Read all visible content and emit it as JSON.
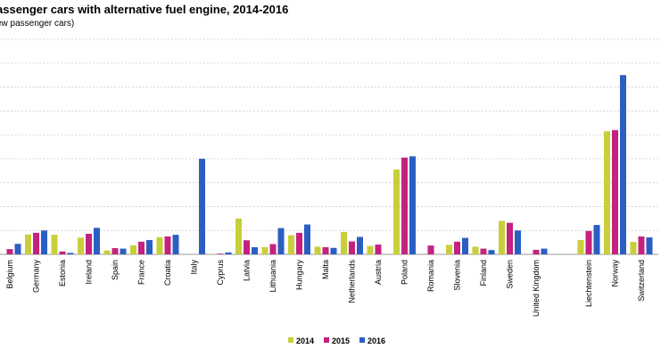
{
  "chart_data": {
    "type": "bar",
    "title": "assenger cars with alternative fuel engine, 2014-2016",
    "subtitle": "ew passenger cars)",
    "categories": [
      "Belgium",
      "Germany",
      "Estonia",
      "Ireland",
      "Spain",
      "France",
      "Croatia",
      "Italy",
      "Cyprus",
      "Latvia",
      "Lithuania",
      "Hungary",
      "Malta",
      "Netherlands",
      "Austria",
      "Poland",
      "Romania",
      "Slovenia",
      "Finland",
      "Sweden",
      "United Kingdom",
      "",
      "Liechtenstein",
      "Norway",
      "Switzerland"
    ],
    "series": [
      {
        "name": "2014",
        "color": "#c8cf3a",
        "values": [
          0,
          8.3,
          8.2,
          7.0,
          1.6,
          3.8,
          7.2,
          0,
          0.1,
          15.0,
          3.0,
          8.0,
          3.2,
          9.4,
          3.5,
          35.5,
          0,
          4.0,
          3.2,
          14.0,
          0,
          0,
          6.0,
          51.5,
          5.2
        ]
      },
      {
        "name": "2015",
        "color": "#c4227e",
        "values": [
          2.2,
          9.0,
          1.2,
          8.6,
          2.6,
          5.3,
          7.5,
          0,
          0.3,
          5.9,
          4.3,
          9.0,
          3.0,
          5.4,
          4.1,
          40.5,
          3.7,
          5.3,
          2.4,
          13.2,
          1.9,
          0,
          9.8,
          52.0,
          7.5
        ]
      },
      {
        "name": "2016",
        "color": "#2b5ec2",
        "values": [
          4.4,
          10.0,
          0.6,
          11.1,
          2.4,
          6.0,
          8.2,
          40.0,
          0.8,
          3.0,
          11.0,
          12.5,
          2.7,
          7.3,
          0,
          41.0,
          0,
          6.9,
          1.8,
          10.0,
          2.4,
          0,
          12.3,
          75.0,
          7.1
        ]
      }
    ],
    "ylim": [
      0,
      90
    ],
    "grid": true,
    "legend": "bottom"
  }
}
